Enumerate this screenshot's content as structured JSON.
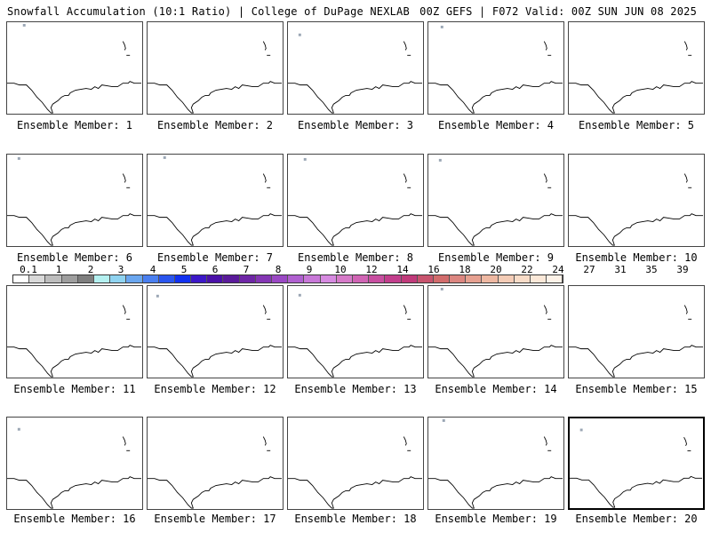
{
  "header": {
    "left": "Snowfall Accumulation (10:1 Ratio) | College of DuPage NEXLAB",
    "right": "00Z GEFS | F072 Valid: 00Z SUN JUN 08 2025"
  },
  "members": [
    {
      "label": "Ensemble Member: 1"
    },
    {
      "label": "Ensemble Member: 2"
    },
    {
      "label": "Ensemble Member: 3"
    },
    {
      "label": "Ensemble Member: 4"
    },
    {
      "label": "Ensemble Member: 5"
    },
    {
      "label": "Ensemble Member: 6"
    },
    {
      "label": "Ensemble Member: 7"
    },
    {
      "label": "Ensemble Member: 8"
    },
    {
      "label": "Ensemble Member: 9"
    },
    {
      "label": "Ensemble Member: 10"
    },
    {
      "label": "Ensemble Member: 11"
    },
    {
      "label": "Ensemble Member: 12"
    },
    {
      "label": "Ensemble Member: 13"
    },
    {
      "label": "Ensemble Member: 14"
    },
    {
      "label": "Ensemble Member: 15"
    },
    {
      "label": "Ensemble Member: 16"
    },
    {
      "label": "Ensemble Member: 17"
    },
    {
      "label": "Ensemble Member: 18"
    },
    {
      "label": "Ensemble Member: 19"
    },
    {
      "label": "Ensemble Member: 20"
    }
  ],
  "colorbar": {
    "labels": [
      "0.1",
      "1",
      "2",
      "3",
      "4",
      "5",
      "6",
      "7",
      "8",
      "9",
      "10",
      "12",
      "14",
      "16",
      "18",
      "20",
      "22",
      "24",
      "27",
      "31",
      "35",
      "39"
    ],
    "colors": [
      "#ffffff",
      "#d9d9d9",
      "#bdbdbd",
      "#9e9e9e",
      "#7e7e7e",
      "#b4f0f0",
      "#8fd3f0",
      "#6aa6ef",
      "#4a7ff0",
      "#2a55ee",
      "#1030f0",
      "#3c18c8",
      "#4a10a8",
      "#5a1a9a",
      "#6e26a6",
      "#8436b4",
      "#9a48c4",
      "#b060d0",
      "#c878d8",
      "#d68ae0",
      "#d67ac8",
      "#d064b4",
      "#c84ea0",
      "#c23e8c",
      "#c03a7a",
      "#c8546e",
      "#d26c6c",
      "#dc8680",
      "#e6a090",
      "#eeb8a2",
      "#f4ccb6",
      "#f8dcc8",
      "#fbe8d8",
      "#fdf2e8"
    ]
  }
}
